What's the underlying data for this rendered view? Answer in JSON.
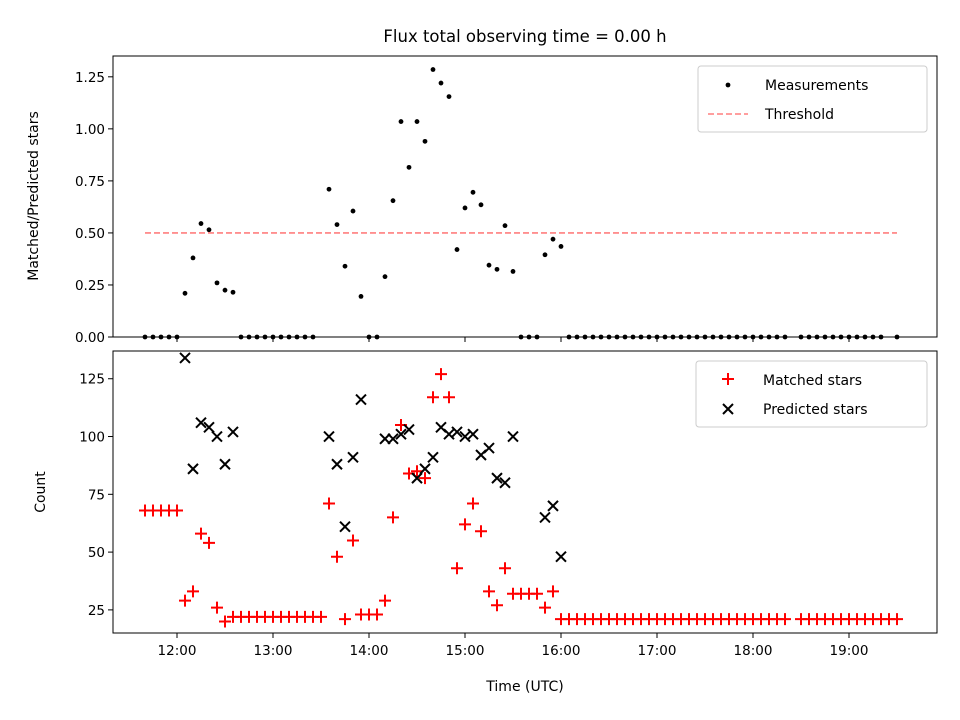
{
  "figure": {
    "title": "Flux total observing time = 0.00 h",
    "xlabel": "Time (UTC)"
  },
  "x_ticks": [
    "12:00",
    "13:00",
    "14:00",
    "15:00",
    "16:00",
    "17:00",
    "18:00",
    "19:00"
  ],
  "chart_data": [
    {
      "type": "scatter",
      "title": "Flux total observing time = 0.00 h",
      "xlabel": "",
      "ylabel": "Matched/Predicted stars",
      "xlim": [
        "11:20",
        "19:55"
      ],
      "ylim": [
        0,
        1.35
      ],
      "y_ticks": [
        "0.00",
        "0.25",
        "0.50",
        "0.75",
        "1.00",
        "1.25"
      ],
      "legend_position": "top-right",
      "series": [
        {
          "name": "Measurements",
          "marker": "dot",
          "color": "#000000",
          "points": [
            [
              "11:40",
              0
            ],
            [
              "11:45",
              0
            ],
            [
              "11:50",
              0
            ],
            [
              "11:55",
              0
            ],
            [
              "12:00",
              0
            ],
            [
              "12:05",
              0.21
            ],
            [
              "12:10",
              0.38
            ],
            [
              "12:15",
              0.545
            ],
            [
              "12:20",
              0.515
            ],
            [
              "12:25",
              0.26
            ],
            [
              "12:30",
              0.225
            ],
            [
              "12:35",
              0.215
            ],
            [
              "12:40",
              0
            ],
            [
              "12:45",
              0
            ],
            [
              "12:50",
              0
            ],
            [
              "12:55",
              0
            ],
            [
              "13:00",
              0
            ],
            [
              "13:05",
              0
            ],
            [
              "13:10",
              0
            ],
            [
              "13:15",
              0
            ],
            [
              "13:20",
              0
            ],
            [
              "13:25",
              0
            ],
            [
              "13:35",
              0.71
            ],
            [
              "13:40",
              0.54
            ],
            [
              "13:45",
              0.34
            ],
            [
              "13:50",
              0.605
            ],
            [
              "13:55",
              0.195
            ],
            [
              "14:00",
              0
            ],
            [
              "14:05",
              0
            ],
            [
              "14:10",
              0.29
            ],
            [
              "14:15",
              0.655
            ],
            [
              "14:20",
              1.035
            ],
            [
              "14:25",
              0.815
            ],
            [
              "14:30",
              1.035
            ],
            [
              "14:35",
              0.94
            ],
            [
              "14:40",
              1.285
            ],
            [
              "14:45",
              1.22
            ],
            [
              "14:50",
              1.155
            ],
            [
              "14:55",
              0.42
            ],
            [
              "15:00",
              0.62
            ],
            [
              "15:05",
              0.695
            ],
            [
              "15:10",
              0.635
            ],
            [
              "15:15",
              0.345
            ],
            [
              "15:20",
              0.325
            ],
            [
              "15:25",
              0.535
            ],
            [
              "15:30",
              0.315
            ],
            [
              "15:35",
              0
            ],
            [
              "15:40",
              0
            ],
            [
              "15:45",
              0
            ],
            [
              "15:50",
              0.395
            ],
            [
              "15:55",
              0.47
            ],
            [
              "16:00",
              0.435
            ],
            [
              "16:05",
              0
            ],
            [
              "16:10",
              0
            ],
            [
              "16:15",
              0
            ],
            [
              "16:20",
              0
            ],
            [
              "16:25",
              0
            ],
            [
              "16:30",
              0
            ],
            [
              "16:35",
              0
            ],
            [
              "16:40",
              0
            ],
            [
              "16:45",
              0
            ],
            [
              "16:50",
              0
            ],
            [
              "16:55",
              0
            ],
            [
              "17:00",
              0
            ],
            [
              "17:05",
              0
            ],
            [
              "17:10",
              0
            ],
            [
              "17:15",
              0
            ],
            [
              "17:20",
              0
            ],
            [
              "17:25",
              0
            ],
            [
              "17:30",
              0
            ],
            [
              "17:35",
              0
            ],
            [
              "17:40",
              0
            ],
            [
              "17:45",
              0
            ],
            [
              "17:50",
              0
            ],
            [
              "17:55",
              0
            ],
            [
              "18:00",
              0
            ],
            [
              "18:05",
              0
            ],
            [
              "18:10",
              0
            ],
            [
              "18:15",
              0
            ],
            [
              "18:20",
              0
            ],
            [
              "18:30",
              0
            ],
            [
              "18:35",
              0
            ],
            [
              "18:40",
              0
            ],
            [
              "18:45",
              0
            ],
            [
              "18:50",
              0
            ],
            [
              "18:55",
              0
            ],
            [
              "19:00",
              0
            ],
            [
              "19:05",
              0
            ],
            [
              "19:10",
              0
            ],
            [
              "19:15",
              0
            ],
            [
              "19:20",
              0
            ],
            [
              "19:30",
              0
            ]
          ]
        },
        {
          "name": "Threshold",
          "marker": "dashed-line",
          "color": "#ff7f7f",
          "points": [
            [
              "11:40",
              0.5
            ],
            [
              "19:30",
              0.5
            ]
          ]
        }
      ]
    },
    {
      "type": "scatter",
      "title": "",
      "xlabel": "Time (UTC)",
      "ylabel": "Count",
      "xlim": [
        "11:20",
        "19:55"
      ],
      "ylim": [
        15,
        137
      ],
      "y_ticks": [
        "25",
        "50",
        "75",
        "100",
        "125"
      ],
      "legend_position": "top-right",
      "series": [
        {
          "name": "Matched stars",
          "marker": "plus",
          "color": "#ff0000",
          "points": [
            [
              "11:40",
              68
            ],
            [
              "11:45",
              68
            ],
            [
              "11:50",
              68
            ],
            [
              "11:55",
              68
            ],
            [
              "12:00",
              68
            ],
            [
              "12:05",
              29
            ],
            [
              "12:10",
              33
            ],
            [
              "12:15",
              58
            ],
            [
              "12:20",
              54
            ],
            [
              "12:25",
              26
            ],
            [
              "12:30",
              20
            ],
            [
              "12:35",
              22
            ],
            [
              "12:40",
              22
            ],
            [
              "12:45",
              22
            ],
            [
              "12:50",
              22
            ],
            [
              "12:55",
              22
            ],
            [
              "13:00",
              22
            ],
            [
              "13:05",
              22
            ],
            [
              "13:10",
              22
            ],
            [
              "13:15",
              22
            ],
            [
              "13:20",
              22
            ],
            [
              "13:25",
              22
            ],
            [
              "13:30",
              22
            ],
            [
              "13:35",
              71
            ],
            [
              "13:40",
              48
            ],
            [
              "13:45",
              21
            ],
            [
              "13:50",
              55
            ],
            [
              "13:55",
              23
            ],
            [
              "14:00",
              23
            ],
            [
              "14:05",
              23
            ],
            [
              "14:10",
              29
            ],
            [
              "14:15",
              65
            ],
            [
              "14:20",
              105
            ],
            [
              "14:25",
              84
            ],
            [
              "14:30",
              85
            ],
            [
              "14:35",
              82
            ],
            [
              "14:40",
              117
            ],
            [
              "14:45",
              127
            ],
            [
              "14:50",
              117
            ],
            [
              "14:55",
              43
            ],
            [
              "15:00",
              62
            ],
            [
              "15:05",
              71
            ],
            [
              "15:10",
              59
            ],
            [
              "15:15",
              33
            ],
            [
              "15:20",
              27
            ],
            [
              "15:25",
              43
            ],
            [
              "15:30",
              32
            ],
            [
              "15:35",
              32
            ],
            [
              "15:40",
              32
            ],
            [
              "15:45",
              32
            ],
            [
              "15:50",
              26
            ],
            [
              "15:55",
              33
            ],
            [
              "16:00",
              21
            ],
            [
              "16:05",
              21
            ],
            [
              "16:10",
              21
            ],
            [
              "16:15",
              21
            ],
            [
              "16:20",
              21
            ],
            [
              "16:25",
              21
            ],
            [
              "16:30",
              21
            ],
            [
              "16:35",
              21
            ],
            [
              "16:40",
              21
            ],
            [
              "16:45",
              21
            ],
            [
              "16:50",
              21
            ],
            [
              "16:55",
              21
            ],
            [
              "17:00",
              21
            ],
            [
              "17:05",
              21
            ],
            [
              "17:10",
              21
            ],
            [
              "17:15",
              21
            ],
            [
              "17:20",
              21
            ],
            [
              "17:25",
              21
            ],
            [
              "17:30",
              21
            ],
            [
              "17:35",
              21
            ],
            [
              "17:40",
              21
            ],
            [
              "17:45",
              21
            ],
            [
              "17:50",
              21
            ],
            [
              "17:55",
              21
            ],
            [
              "18:00",
              21
            ],
            [
              "18:05",
              21
            ],
            [
              "18:10",
              21
            ],
            [
              "18:15",
              21
            ],
            [
              "18:20",
              21
            ],
            [
              "18:30",
              21
            ],
            [
              "18:35",
              21
            ],
            [
              "18:40",
              21
            ],
            [
              "18:45",
              21
            ],
            [
              "18:50",
              21
            ],
            [
              "18:55",
              21
            ],
            [
              "19:00",
              21
            ],
            [
              "19:05",
              21
            ],
            [
              "19:10",
              21
            ],
            [
              "19:15",
              21
            ],
            [
              "19:20",
              21
            ],
            [
              "19:25",
              21
            ],
            [
              "19:30",
              21
            ]
          ]
        },
        {
          "name": "Predicted stars",
          "marker": "x",
          "color": "#000000",
          "points": [
            [
              "12:05",
              134
            ],
            [
              "12:10",
              86
            ],
            [
              "12:15",
              106
            ],
            [
              "12:20",
              104
            ],
            [
              "12:25",
              100
            ],
            [
              "12:30",
              88
            ],
            [
              "12:35",
              102
            ],
            [
              "13:35",
              100
            ],
            [
              "13:40",
              88
            ],
            [
              "13:45",
              61
            ],
            [
              "13:50",
              91
            ],
            [
              "13:55",
              116
            ],
            [
              "14:10",
              99
            ],
            [
              "14:15",
              99
            ],
            [
              "14:20",
              101
            ],
            [
              "14:25",
              103
            ],
            [
              "14:30",
              82
            ],
            [
              "14:35",
              86
            ],
            [
              "14:40",
              91
            ],
            [
              "14:45",
              104
            ],
            [
              "14:50",
              101
            ],
            [
              "14:55",
              102
            ],
            [
              "15:00",
              100
            ],
            [
              "15:05",
              101
            ],
            [
              "15:10",
              92
            ],
            [
              "15:15",
              95
            ],
            [
              "15:20",
              82
            ],
            [
              "15:25",
              80
            ],
            [
              "15:30",
              100
            ],
            [
              "15:50",
              65
            ],
            [
              "15:55",
              70
            ],
            [
              "16:00",
              48
            ]
          ]
        }
      ]
    }
  ]
}
